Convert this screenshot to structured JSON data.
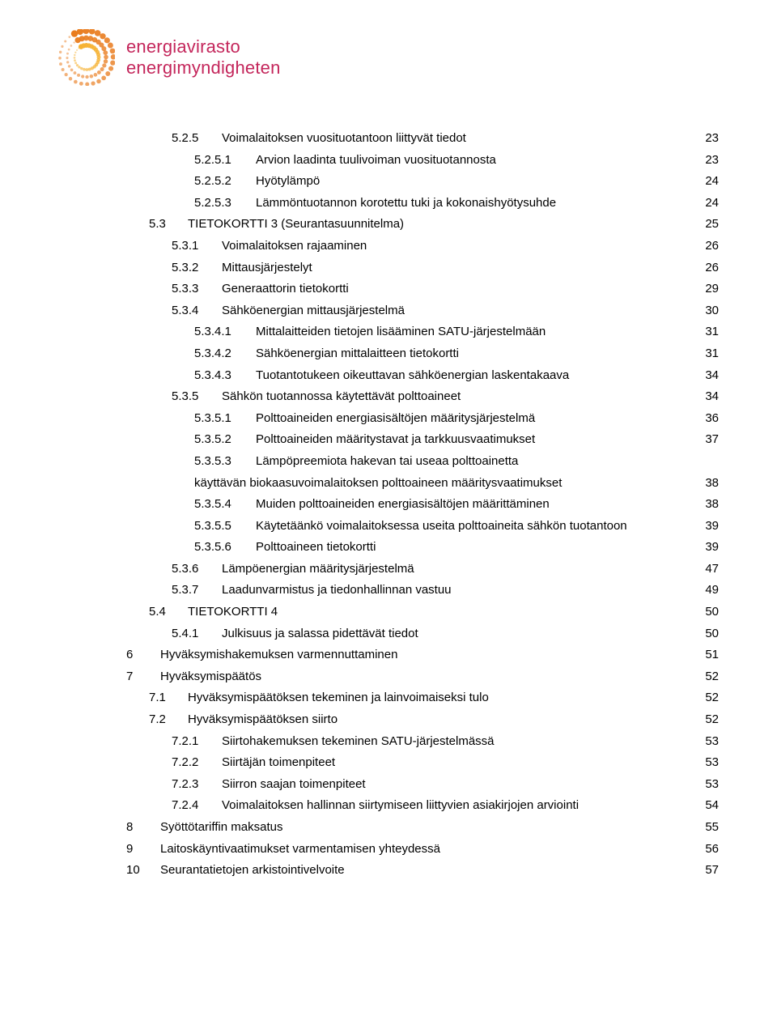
{
  "logo": {
    "line1": "energiavirasto",
    "line2": "energimyndigheten",
    "text_color": "#c4265b",
    "text_fontsize": 22,
    "sun_outer_color": "#e97c1e",
    "sun_inner_color": "#f6b233"
  },
  "toc": {
    "text_color": "#000000",
    "fontsize": 15,
    "line_height": 26.6,
    "base_indent": 84,
    "indent_step": 28,
    "num_gap": 26,
    "entries": [
      {
        "level": 2,
        "num": "5.2.5",
        "title": "Voimalaitoksen vuosituotantoon liittyvät tiedot",
        "page": 23
      },
      {
        "level": 3,
        "num": "5.2.5.1",
        "title": "Arvion laadinta tuulivoiman vuosituotannosta",
        "page": 23
      },
      {
        "level": 3,
        "num": "5.2.5.2",
        "title": "Hyötylämpö",
        "page": 24
      },
      {
        "level": 3,
        "num": "5.2.5.3",
        "title": "Lämmöntuotannon korotettu tuki ja kokonaishyötysuhde",
        "page": 24
      },
      {
        "level": 1,
        "num": "5.3",
        "title": "TIETOKORTTI 3 (Seurantasuunnitelma)",
        "page": 25
      },
      {
        "level": 2,
        "num": "5.3.1",
        "title": "Voimalaitoksen rajaaminen",
        "page": 26
      },
      {
        "level": 2,
        "num": "5.3.2",
        "title": "Mittausjärjestelyt",
        "page": 26
      },
      {
        "level": 2,
        "num": "5.3.3",
        "title": "Generaattorin tietokortti",
        "page": 29
      },
      {
        "level": 2,
        "num": "5.3.4",
        "title": "Sähköenergian mittausjärjestelmä",
        "page": 30
      },
      {
        "level": 3,
        "num": "5.3.4.1",
        "title": "Mittalaitteiden tietojen lisääminen SATU-järjestelmään",
        "page": 31
      },
      {
        "level": 3,
        "num": "5.3.4.2",
        "title": "Sähköenergian mittalaitteen tietokortti",
        "page": 31
      },
      {
        "level": 3,
        "num": "5.3.4.3",
        "title": "Tuotantotukeen oikeuttavan sähköenergian laskentakaava",
        "page": 34
      },
      {
        "level": 2,
        "num": "5.3.5",
        "title": "Sähkön tuotannossa käytettävät polttoaineet",
        "page": 34
      },
      {
        "level": 3,
        "num": "5.3.5.1",
        "title": "Polttoaineiden energiasisältöjen määritysjärjestelmä",
        "page": 36
      },
      {
        "level": 3,
        "num": "5.3.5.2",
        "title": "Polttoaineiden määritystavat ja tarkkuusvaatimukset",
        "page": 37
      },
      {
        "level": 3,
        "num": "5.3.5.3",
        "title": "Lämpöpreemiota hakevan tai useaa polttoainetta käyttävän biokaasuvoimalaitoksen polttoaineen määritysvaatimukset",
        "page": 38,
        "wrap": true
      },
      {
        "level": 3,
        "num": "5.3.5.4",
        "title": "Muiden polttoaineiden energiasisältöjen määrittäminen",
        "page": 38
      },
      {
        "level": 3,
        "num": "5.3.5.5",
        "title": "Käytetäänkö voimalaitoksessa useita polttoaineita sähkön tuotantoon",
        "page": 39
      },
      {
        "level": 3,
        "num": "5.3.5.6",
        "title": "Polttoaineen tietokortti",
        "page": 39
      },
      {
        "level": 2,
        "num": "5.3.6",
        "title": "Lämpöenergian määritysjärjestelmä",
        "page": 47
      },
      {
        "level": 2,
        "num": "5.3.7",
        "title": "Laadunvarmistus ja tiedonhallinnan vastuu",
        "page": 49
      },
      {
        "level": 1,
        "num": "5.4",
        "title": "TIETOKORTTI 4",
        "page": 50
      },
      {
        "level": 2,
        "num": "5.4.1",
        "title": "Julkisuus ja salassa pidettävät tiedot",
        "page": 50
      },
      {
        "level": 0,
        "num": "6",
        "title": "Hyväksymishakemuksen varmennuttaminen",
        "page": 51
      },
      {
        "level": 0,
        "num": "7",
        "title": "Hyväksymispäätös",
        "page": 52
      },
      {
        "level": 1,
        "num": "7.1",
        "title": "Hyväksymispäätöksen tekeminen ja lainvoimaiseksi tulo",
        "page": 52
      },
      {
        "level": 1,
        "num": "7.2",
        "title": "Hyväksymispäätöksen siirto",
        "page": 52
      },
      {
        "level": 2,
        "num": "7.2.1",
        "title": "Siirtohakemuksen tekeminen SATU-järjestelmässä",
        "page": 53
      },
      {
        "level": 2,
        "num": "7.2.2",
        "title": "Siirtäjän toimenpiteet",
        "page": 53
      },
      {
        "level": 2,
        "num": "7.2.3",
        "title": "Siirron saajan toimenpiteet",
        "page": 53
      },
      {
        "level": 2,
        "num": "7.2.4",
        "title": "Voimalaitoksen hallinnan siirtymiseen liittyvien asiakirjojen arviointi",
        "page": 54
      },
      {
        "level": 0,
        "num": "8",
        "title": "Syöttötariffin maksatus",
        "page": 55
      },
      {
        "level": 0,
        "num": "9",
        "title": "Laitoskäyntivaatimukset varmentamisen yhteydessä",
        "page": 56
      },
      {
        "level": 0,
        "num": "10",
        "title": "Seurantatietojen arkistointivelvoite",
        "page": 57
      }
    ]
  }
}
